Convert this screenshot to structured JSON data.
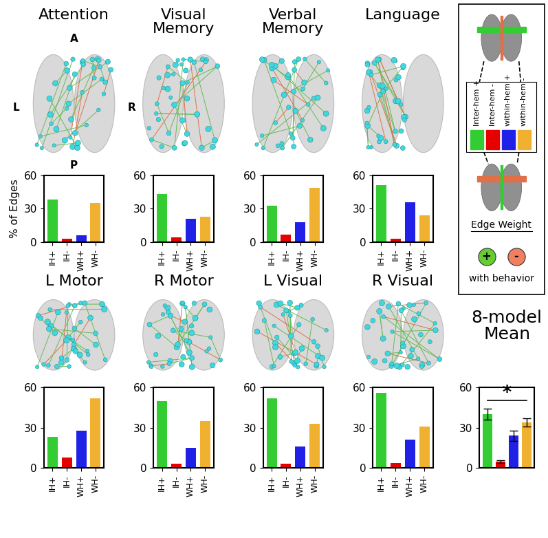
{
  "chart_data": [
    {
      "type": "bar",
      "title": "Attention",
      "y_label": "% of Edges",
      "categories": [
        "IH+",
        "IH-",
        "WH+",
        "WH-"
      ],
      "values": [
        38,
        3,
        6,
        35
      ],
      "colors": [
        "#33cc33",
        "#e60000",
        "#2020e6",
        "#f0b030"
      ],
      "ylim": [
        0,
        60
      ],
      "yticks": [
        0,
        30,
        60
      ]
    },
    {
      "type": "bar",
      "title": "Visual\nMemory",
      "categories": [
        "IH+",
        "IH-",
        "WH+",
        "WH-"
      ],
      "values": [
        43,
        4,
        21,
        23
      ],
      "colors": [
        "#33cc33",
        "#e60000",
        "#2020e6",
        "#f0b030"
      ],
      "ylim": [
        0,
        60
      ],
      "yticks": [
        0,
        30,
        60
      ]
    },
    {
      "type": "bar",
      "title": "Verbal\nMemory",
      "categories": [
        "IH+",
        "IH-",
        "WH+",
        "WH-"
      ],
      "values": [
        33,
        7,
        18,
        49
      ],
      "colors": [
        "#33cc33",
        "#e60000",
        "#2020e6",
        "#f0b030"
      ],
      "ylim": [
        0,
        60
      ],
      "yticks": [
        0,
        30,
        60
      ]
    },
    {
      "type": "bar",
      "title": "Language",
      "categories": [
        "IH+",
        "IH-",
        "WH+",
        "WH-"
      ],
      "values": [
        51,
        3,
        36,
        24
      ],
      "colors": [
        "#33cc33",
        "#e60000",
        "#2020e6",
        "#f0b030"
      ],
      "ylim": [
        0,
        60
      ],
      "yticks": [
        0,
        30,
        60
      ]
    },
    {
      "type": "bar",
      "title": "L Motor",
      "categories": [
        "IH+",
        "IH-",
        "WH+",
        "WH-"
      ],
      "values": [
        23,
        8,
        28,
        52
      ],
      "colors": [
        "#33cc33",
        "#e60000",
        "#2020e6",
        "#f0b030"
      ],
      "ylim": [
        0,
        60
      ],
      "yticks": [
        0,
        30,
        60
      ]
    },
    {
      "type": "bar",
      "title": "R Motor",
      "categories": [
        "IH+",
        "IH-",
        "WH+",
        "WH-"
      ],
      "values": [
        50,
        3,
        15,
        35
      ],
      "colors": [
        "#33cc33",
        "#e60000",
        "#2020e6",
        "#f0b030"
      ],
      "ylim": [
        0,
        60
      ],
      "yticks": [
        0,
        30,
        60
      ]
    },
    {
      "type": "bar",
      "title": "L Visual",
      "categories": [
        "IH+",
        "IH-",
        "WH+",
        "WH-"
      ],
      "values": [
        52,
        3,
        16,
        33
      ],
      "colors": [
        "#33cc33",
        "#e60000",
        "#2020e6",
        "#f0b030"
      ],
      "ylim": [
        0,
        60
      ],
      "yticks": [
        0,
        30,
        60
      ]
    },
    {
      "type": "bar",
      "title": "R Visual",
      "categories": [
        "IH+",
        "IH-",
        "WH+",
        "WH-"
      ],
      "values": [
        56,
        4,
        21,
        31
      ],
      "colors": [
        "#33cc33",
        "#e60000",
        "#2020e6",
        "#f0b030"
      ],
      "ylim": [
        0,
        60
      ],
      "yticks": [
        0,
        30,
        60
      ]
    },
    {
      "type": "bar",
      "title": "8-model\nMean",
      "categories": [
        null,
        null,
        null,
        null
      ],
      "values": [
        40,
        5,
        24,
        34
      ],
      "errors": [
        4,
        1,
        4,
        3
      ],
      "colors": [
        "#33cc33",
        "#e60000",
        "#2020e6",
        "#f0b030"
      ],
      "ylim": [
        0,
        60
      ],
      "yticks": [
        0,
        30,
        60
      ],
      "annotation": "*"
    }
  ],
  "orientation_labels": {
    "anterior": "A",
    "left": "L",
    "right": "R",
    "posterior": "P"
  },
  "legend_panel": {
    "series_key": [
      {
        "label": "Inter-hem +",
        "color": "#33cc33"
      },
      {
        "label": "Inter-hem -",
        "color": "#e60000"
      },
      {
        "label": "within-hem +",
        "color": "#2020e6"
      },
      {
        "label": "within-hem -",
        "color": "#f0b030"
      }
    ],
    "edge_weight_title": "Edge Weight",
    "edge_weight_signs": [
      {
        "label": "+",
        "color": "#66cc33"
      },
      {
        "label": "-",
        "color": "#f08060"
      }
    ],
    "edge_weight_caption": "with behavior"
  }
}
